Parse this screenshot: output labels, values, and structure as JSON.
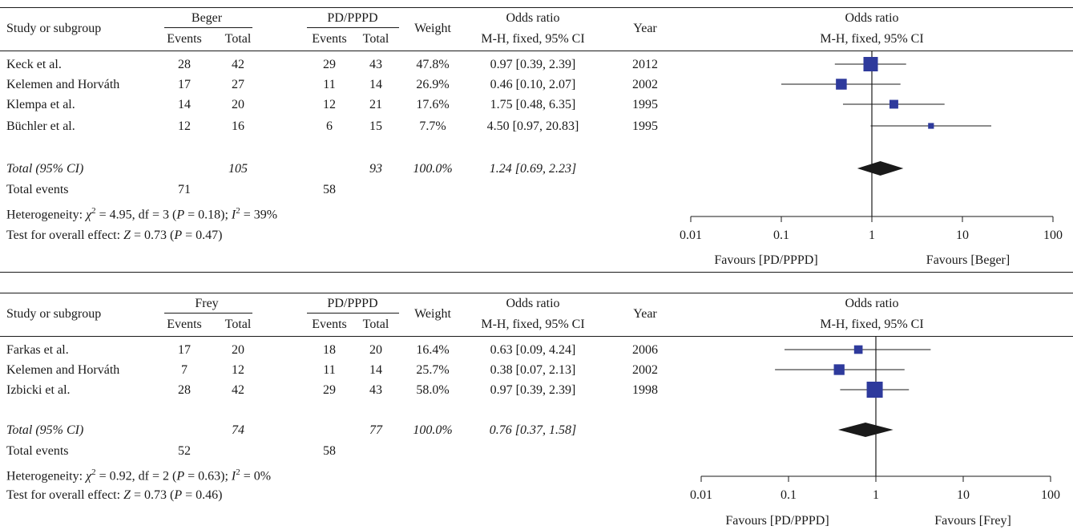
{
  "chart_data": [
    {
      "type": "forest",
      "header": {
        "study_col": "Study or subgroup",
        "experimental_group": "Beger",
        "control_group": "PD/PPPD",
        "events_label": "Events",
        "total_label": "Total",
        "weight_label": "Weight",
        "effect_label": "Odds ratio",
        "method_label": "M-H, fixed, 95% CI",
        "year_label": "Year",
        "plot_title": "Odds ratio",
        "plot_method": "M-H, fixed, 95% CI"
      },
      "studies": [
        {
          "name": "Keck et al.",
          "e_events": "28",
          "e_total": "42",
          "c_events": "29",
          "c_total": "43",
          "weight": "47.8%",
          "ci_text": "0.97 [0.39, 2.39]",
          "year": "2012",
          "or": 0.97,
          "lo": 0.39,
          "hi": 2.39,
          "w": 47.8
        },
        {
          "name": "Kelemen and Horváth",
          "e_events": "17",
          "e_total": "27",
          "c_events": "11",
          "c_total": "14",
          "weight": "26.9%",
          "ci_text": "0.46 [0.10, 2.07]",
          "year": "2002",
          "or": 0.46,
          "lo": 0.1,
          "hi": 2.07,
          "w": 26.9
        },
        {
          "name": "Klempa et al.",
          "e_events": "14",
          "e_total": "20",
          "c_events": "12",
          "c_total": "21",
          "weight": "17.6%",
          "ci_text": "1.75 [0.48, 6.35]",
          "year": "1995",
          "or": 1.75,
          "lo": 0.48,
          "hi": 6.35,
          "w": 17.6
        },
        {
          "name": "Büchler et al.",
          "e_events": "12",
          "e_total": "16",
          "c_events": "6",
          "c_total": "15",
          "weight": "7.7%",
          "ci_text": "4.50 [0.97, 20.83]",
          "year": "1995",
          "or": 4.5,
          "lo": 0.97,
          "hi": 20.83,
          "w": 7.7
        }
      ],
      "total": {
        "label": "Total (95% CI)",
        "e_total": "105",
        "c_total": "93",
        "weight": "100.0%",
        "ci_text": "1.24 [0.69, 2.23]",
        "or": 1.24,
        "lo": 0.69,
        "hi": 2.23
      },
      "total_events": {
        "label": "Total events",
        "e_events": "71",
        "c_events": "58"
      },
      "heterogeneity": {
        "prefix": "Heterogeneity: ",
        "chi": "χ",
        "sup": "2",
        "body": " = 4.95, df = 3 (",
        "p": "P",
        "pval": " = 0.18); ",
        "i": "I",
        "isup": "2",
        "ival": " = 39%"
      },
      "overall": {
        "prefix": "Test for overall effect: ",
        "z": "Z",
        "zval": " = 0.73 (",
        "p": "P",
        "pval": " = 0.47)"
      },
      "x_scale": "log",
      "xlim": [
        0.01,
        100
      ],
      "ticks": [
        "0.01",
        "0.1",
        "1",
        "10",
        "100"
      ],
      "favours_left": "Favours [PD/PPPD]",
      "favours_right": "Favours [Beger]"
    },
    {
      "type": "forest",
      "header": {
        "study_col": "Study or subgroup",
        "experimental_group": "Frey",
        "control_group": "PD/PPPD",
        "events_label": "Events",
        "total_label": "Total",
        "weight_label": "Weight",
        "effect_label": "Odds ratio",
        "method_label": "M-H, fixed, 95% CI",
        "year_label": "Year",
        "plot_title": "Odds ratio",
        "plot_method": "M-H, fixed, 95% CI"
      },
      "studies": [
        {
          "name": "Farkas et al.",
          "e_events": "17",
          "e_total": "20",
          "c_events": "18",
          "c_total": "20",
          "weight": "16.4%",
          "ci_text": "0.63 [0.09, 4.24]",
          "year": "2006",
          "or": 0.63,
          "lo": 0.09,
          "hi": 4.24,
          "w": 16.4
        },
        {
          "name": "Kelemen and Horváth",
          "e_events": "7",
          "e_total": "12",
          "c_events": "11",
          "c_total": "14",
          "weight": "25.7%",
          "ci_text": "0.38 [0.07, 2.13]",
          "year": "2002",
          "or": 0.38,
          "lo": 0.07,
          "hi": 2.13,
          "w": 25.7
        },
        {
          "name": "Izbicki et al.",
          "e_events": "28",
          "e_total": "42",
          "c_events": "29",
          "c_total": "43",
          "weight": "58.0%",
          "ci_text": "0.97 [0.39, 2.39]",
          "year": "1998",
          "or": 0.97,
          "lo": 0.39,
          "hi": 2.39,
          "w": 58.0
        }
      ],
      "total": {
        "label": "Total (95% CI)",
        "e_total": "74",
        "c_total": "77",
        "weight": "100.0%",
        "ci_text": "0.76 [0.37, 1.58]",
        "or": 0.76,
        "lo": 0.37,
        "hi": 1.58
      },
      "total_events": {
        "label": "Total events",
        "e_events": "52",
        "c_events": "58"
      },
      "heterogeneity": {
        "prefix": "Heterogeneity: ",
        "chi": "χ",
        "sup": "2",
        "body": " = 0.92, df = 2 (",
        "p": "P",
        "pval": " = 0.63); ",
        "i": "I",
        "isup": "2",
        "ival": " = 0%"
      },
      "overall": {
        "prefix": "Test for overall effect: ",
        "z": "Z",
        "zval": " = 0.73 (",
        "p": "P",
        "pval": " = 0.46)"
      },
      "x_scale": "log",
      "xlim": [
        0.01,
        100
      ],
      "ticks": [
        "0.01",
        "0.1",
        "1",
        "10",
        "100"
      ],
      "favours_left": "Favours [PD/PPPD]",
      "favours_right": "Favours [Frey]"
    }
  ],
  "colors": {
    "square": "#2e3a9c",
    "diamond": "#1a1a1a",
    "text": "#1a1a1a"
  }
}
